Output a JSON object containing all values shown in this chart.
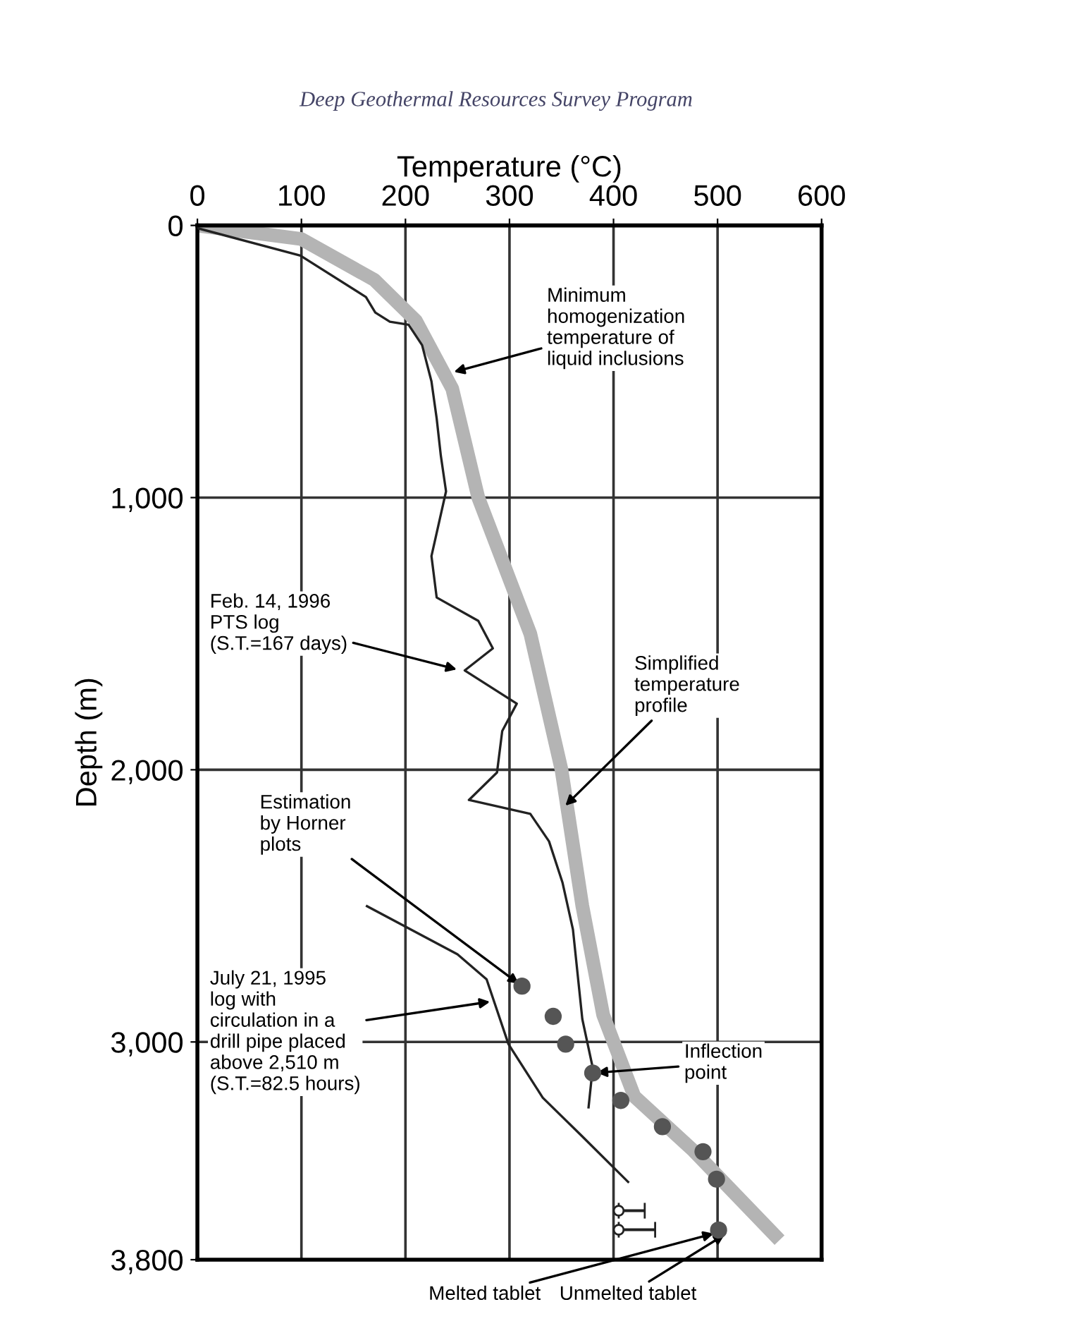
{
  "chart_data": {
    "type": "line",
    "title": "Deep Geothermal Resources Survey Program",
    "xlabel": "Temperature (°C)",
    "ylabel": "Depth (m)",
    "xlim": [
      0,
      600
    ],
    "xticks": [
      0,
      100,
      200,
      300,
      400,
      500,
      600
    ],
    "ylim": [
      3800,
      0
    ],
    "yticks": [
      0,
      {
        "value": 1000,
        "label": "1,000"
      },
      {
        "value": 2000,
        "label": "2,000"
      },
      {
        "value": 3000,
        "label": "3,000"
      },
      {
        "value": 3800,
        "label": "3,800"
      }
    ],
    "grid": true,
    "legend": false,
    "series": [
      {
        "color": "#b4b4b4",
        "marker": "none",
        "x": [
          0,
          100,
          170,
          210,
          245,
          270,
          320,
          350,
          370,
          390,
          420,
          477,
          555
        ],
        "values": [
          0,
          50,
          200,
          350,
          600,
          1000,
          1500,
          2000,
          2500,
          2900,
          3200,
          3400,
          3710
        ]
      },
      {
        "color": "#222222",
        "marker": "none",
        "x": [
          0,
          99,
          162,
          171,
          185,
          203,
          216,
          225,
          230,
          234,
          239,
          225,
          230,
          270,
          284,
          257,
          307,
          293,
          288,
          261,
          320,
          338,
          351,
          361,
          370,
          380,
          376
        ],
        "values": [
          10,
          111,
          263,
          320,
          354,
          365,
          440,
          573,
          709,
          846,
          977,
          1215,
          1367,
          1453,
          1554,
          1635,
          1757,
          1858,
          2010,
          2111,
          2162,
          2263,
          2415,
          2587,
          2916,
          3094,
          3240
        ]
      },
      {
        "color": "#222222",
        "marker": "none",
        "x": [
          163,
          250,
          278,
          299,
          332,
          370,
          414
        ],
        "values": [
          2501,
          2678,
          2770,
          3008,
          3205,
          3347,
          3514
        ]
      },
      {
        "type": "scatter",
        "color": "#555555",
        "marker": "circle",
        "x": [
          312,
          342,
          354,
          380,
          407,
          447,
          486,
          499,
          501
        ],
        "values": [
          2795,
          2906,
          3008,
          3114,
          3215,
          3311,
          3403,
          3504,
          3691
        ]
      },
      {
        "type": "scatter",
        "color": "#222222",
        "marker": "circle",
        "x": [
          405,
          405
        ],
        "values": [
          3620,
          3690
        ],
        "xerrors": [
          [
            405,
            430
          ],
          [
            405,
            440
          ]
        ]
      }
    ],
    "annotations": [
      {
        "text": "Minimum\nhomogenization\ntemperature of\nliquid inclusions",
        "x": 243,
        "y": 542
      },
      {
        "text": "Feb. 14, 1996\nPTS log\n(S.T.=167 days)",
        "x": 253,
        "y": 1635
      },
      {
        "text": "Simplified\ntemperature\nprofile",
        "x": 351,
        "y": 2142
      },
      {
        "text": "Estimation\nby Horner\nplots",
        "x": 312,
        "y": 2795
      },
      {
        "text": "July 21, 1995\nlog with\ncirculation in a\ndrill pipe placed\nabove 2,510 m\n(S.T.=82.5 hours)",
        "x": 285,
        "y": 2850
      },
      {
        "text": "Inflection\npoint",
        "x": 380,
        "y": 3114
      },
      {
        "text": "Melted tablet",
        "x": 500,
        "y": 3700
      },
      {
        "text": "Unmelted tablet",
        "x": 510,
        "y": 3700
      }
    ]
  }
}
